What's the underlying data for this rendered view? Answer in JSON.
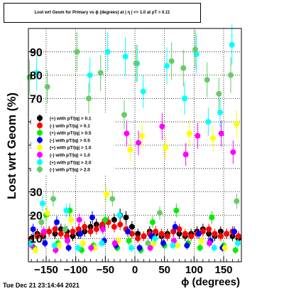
{
  "title": "Lost wrt Geom for Primary vs ϕ (degrees) at | η | <= 1.0 at pT > 0.11",
  "timestamp": "Tue Dec 21 23:14:44 2021",
  "chart_data": {
    "type": "scatter",
    "title": "Lost wrt Geom for Primary vs ϕ (degrees) at | η | <= 1.0 at pT > 0.11",
    "xlabel": "ϕ (degrees)",
    "ylabel": "Lost wrt Geom (%)",
    "xlim": [
      -180,
      180
    ],
    "ylim": [
      0,
      100
    ],
    "xticks": [
      -150,
      -100,
      -50,
      0,
      50,
      100,
      150
    ],
    "xtick_labels": [
      "−150",
      "−100",
      "−50",
      "0",
      "50",
      "100",
      "150"
    ],
    "yticks": [
      10,
      20,
      30,
      40,
      50,
      60,
      70,
      80,
      90
    ],
    "grid": true,
    "legend_position": "middle-left",
    "series": [
      {
        "name": "(+) with pT/|q| > 0.1",
        "color": "#000000",
        "x": [
          -175,
          -165,
          -155,
          -145,
          -135,
          -125,
          -115,
          -105,
          -95,
          -85,
          -75,
          -65,
          -55,
          -45,
          -35,
          -25,
          -15,
          -5,
          5,
          15,
          25,
          35,
          45,
          55,
          65,
          75,
          85,
          95,
          105,
          115,
          125,
          135,
          145,
          155,
          165,
          175
        ],
        "y": [
          10,
          12,
          11,
          13,
          12,
          14,
          13,
          11,
          12,
          13,
          15,
          16,
          15,
          17,
          18,
          20,
          19,
          15,
          12,
          11,
          13,
          12,
          11,
          12,
          13,
          12,
          11,
          12,
          13,
          14,
          12,
          11,
          13,
          12,
          11,
          10
        ]
      },
      {
        "name": "(-) with pT/|q| > 0.1",
        "color": "#ff0000",
        "x": [
          -175,
          -165,
          -155,
          -145,
          -135,
          -125,
          -115,
          -105,
          -95,
          -85,
          -75,
          -65,
          -55,
          -45,
          -35,
          -25,
          -15,
          -5,
          5,
          15,
          25,
          35,
          45,
          55,
          65,
          75,
          85,
          95,
          105,
          115,
          125,
          135,
          145,
          155,
          165,
          175
        ],
        "y": [
          9,
          11,
          12,
          13,
          14,
          12,
          11,
          13,
          14,
          15,
          13,
          14,
          16,
          17,
          15,
          16,
          14,
          12,
          10,
          11,
          12,
          13,
          12,
          11,
          13,
          14,
          12,
          11,
          12,
          13,
          14,
          12,
          11,
          12,
          13,
          11
        ]
      },
      {
        "name": "(+) with pT/|q| > 0.5",
        "color": "#00ee00",
        "x": [
          -170,
          -150,
          -130,
          -110,
          -90,
          -70,
          -50,
          -30,
          -10,
          10,
          30,
          50,
          70,
          90,
          110,
          130,
          150,
          170
        ],
        "y": [
          6,
          20,
          8,
          22,
          5,
          7,
          18,
          6,
          9,
          5,
          17,
          7,
          22,
          8,
          6,
          19,
          7,
          5
        ]
      },
      {
        "name": "(-) with pT/|q| > 0.5",
        "color": "#0000ff",
        "x": [
          -172,
          -152,
          -132,
          -112,
          -92,
          -72,
          -52,
          -32,
          -12,
          8,
          28,
          48,
          68,
          88,
          108,
          128,
          148,
          168
        ],
        "y": [
          14,
          8,
          17,
          6,
          12,
          19,
          9,
          7,
          13,
          6,
          11,
          8,
          15,
          7,
          12,
          9,
          6,
          13
        ]
      },
      {
        "name": "(+) with pT/|q| > 1.0",
        "color": "#ffff00",
        "x": [
          -168,
          -148,
          -128,
          -108,
          -88,
          -68,
          -48,
          -28,
          -8,
          12,
          32,
          52,
          72,
          92,
          112,
          132,
          152,
          172
        ],
        "y": [
          5,
          21,
          7,
          18,
          8,
          6,
          29,
          9,
          48,
          54,
          8,
          49,
          7,
          55,
          9,
          53,
          6,
          59
        ]
      },
      {
        "name": "(-) with pT/|q| > 1.0",
        "color": "#ff00ff",
        "x": [
          -174,
          -154,
          -134,
          -114,
          -94,
          -74,
          -54,
          -34,
          -14,
          6,
          26,
          46,
          66,
          86,
          106,
          126,
          146,
          166
        ],
        "y": [
          7,
          13,
          5,
          9,
          18,
          6,
          14,
          8,
          55,
          51,
          6,
          58,
          9,
          46,
          54,
          8,
          55,
          47
        ]
      },
      {
        "name": "(+) with pT/|q| > 2.0",
        "color": "#00ffff",
        "x": [
          -176,
          -166,
          -156,
          -136,
          -116,
          -96,
          -76,
          -56,
          -46,
          -26,
          -16,
          -6,
          4,
          14,
          34,
          54,
          64,
          84,
          104,
          124,
          134,
          144,
          164,
          174
        ],
        "y": [
          8,
          81,
          25,
          7,
          22,
          6,
          80,
          8,
          90,
          20,
          88,
          6,
          85,
          73,
          10,
          84,
          7,
          70,
          89,
          60,
          6,
          64,
          93,
          8
        ]
      },
      {
        "name": "(-) with pT/|q| > 2.0",
        "color": "#66cc66",
        "x": [
          -178,
          -158,
          -148,
          -138,
          -118,
          -98,
          -78,
          -58,
          -38,
          -18,
          2,
          22,
          42,
          62,
          82,
          102,
          122,
          142,
          162,
          172
        ],
        "y": [
          79,
          17,
          75,
          27,
          14,
          90,
          70,
          81,
          27,
          63,
          85,
          8,
          21,
          86,
          83,
          91,
          78,
          72,
          80,
          26
        ]
      }
    ]
  }
}
